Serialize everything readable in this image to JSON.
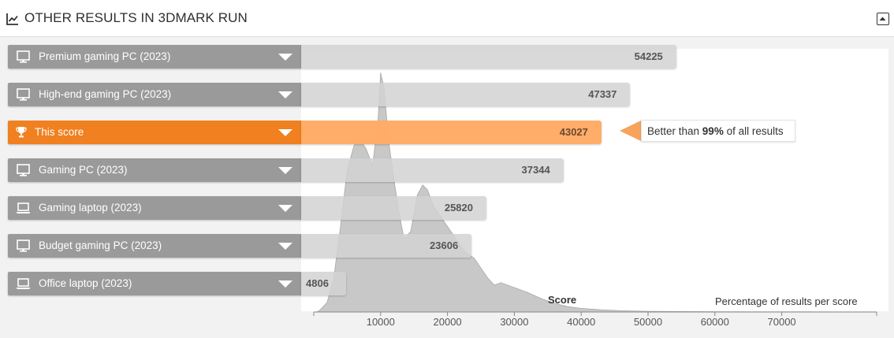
{
  "header": {
    "title": "OTHER RESULTS IN 3DMARK RUN"
  },
  "chart_data": {
    "type": "bar",
    "categories": [
      "Premium gaming PC (2023)",
      "High-end gaming PC (2023)",
      "This score",
      "Gaming PC (2023)",
      "Gaming laptop (2023)",
      "Budget gaming PC (2023)",
      "Office laptop (2023)"
    ],
    "values": [
      54225,
      47337,
      43027,
      37344,
      25820,
      23606,
      4806
    ],
    "value_labels": [
      "54225",
      "47337",
      "43027",
      "37344",
      "25820",
      "23606",
      "4806"
    ],
    "icons": [
      "desktop-icon",
      "desktop-icon",
      "trophy-icon",
      "desktop-icon",
      "laptop-icon",
      "desktop-icon",
      "laptop-icon"
    ],
    "highlight_index": 2,
    "highlight_color": "#f08020",
    "highlight_bar_color": "#ffaa64",
    "bar_color": "#d2d2d2",
    "label_color": "#9a9a9a",
    "xlabel": "Score",
    "ylabel": "Percentage of results per score",
    "xlim": [
      0,
      78000
    ],
    "x_ticks": [
      10000,
      20000,
      30000,
      40000,
      50000,
      60000,
      70000
    ],
    "x_tick_labels": [
      "10000",
      "20000",
      "30000",
      "40000",
      "50000",
      "60000",
      "70000"
    ],
    "distribution": {
      "x": [
        500,
        1000,
        2000,
        3000,
        4000,
        5000,
        6000,
        6800,
        7800,
        8800,
        9600,
        10000,
        10500,
        11200,
        12000,
        12800,
        13500,
        14500,
        15500,
        16300,
        17000,
        18000,
        19500,
        21000,
        22500,
        24000,
        25000,
        26000,
        27000,
        28000,
        30000,
        32000,
        34000,
        36000,
        38000,
        40000,
        43000,
        46000,
        50000,
        55000,
        60000,
        65000,
        70000,
        78000
      ],
      "y": [
        0,
        1,
        4,
        14,
        35,
        58,
        68,
        71,
        67,
        60,
        78,
        98,
        92,
        70,
        54,
        40,
        30,
        33,
        48,
        52,
        50,
        43,
        37,
        31,
        25,
        22,
        18,
        14,
        11,
        12,
        10,
        8,
        5.5,
        3.5,
        2.2,
        1.5,
        0.9,
        0.5,
        0.3,
        0.2,
        0.1,
        0.08,
        0.05,
        0.02
      ],
      "color": "#c8c8c8"
    }
  },
  "callout": {
    "prefix": "Better than ",
    "percent": "99%",
    "suffix": " of all results"
  },
  "colors": {
    "pointer": "#f7a35c"
  }
}
